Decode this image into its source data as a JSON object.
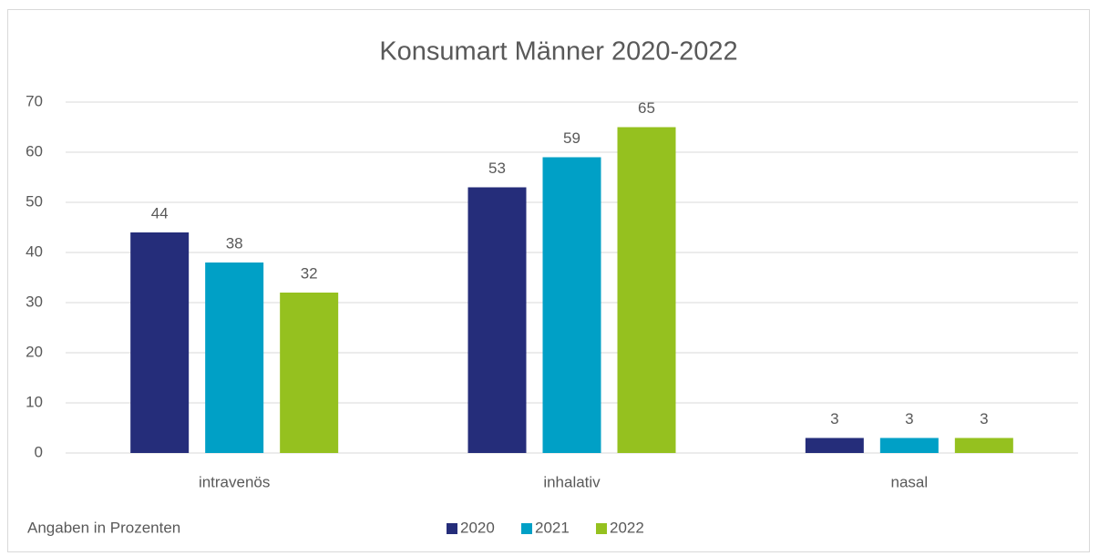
{
  "chart_data": {
    "type": "bar",
    "title": "Konsumart Männer 2020-2022",
    "annotation": "Angaben in Prozenten",
    "categories": [
      "intravenös",
      "inhalativ",
      "nasal"
    ],
    "series": [
      {
        "name": "2020",
        "color": "#252d7a",
        "values": [
          44,
          53,
          3
        ]
      },
      {
        "name": "2021",
        "color": "#00a0c6",
        "values": [
          38,
          59,
          3
        ]
      },
      {
        "name": "2022",
        "color": "#95c11f",
        "values": [
          32,
          65,
          3
        ]
      }
    ],
    "ylim": [
      0,
      70
    ],
    "yticks": [
      0,
      10,
      20,
      30,
      40,
      50,
      60,
      70
    ],
    "grid": true,
    "legend": "bottom"
  }
}
